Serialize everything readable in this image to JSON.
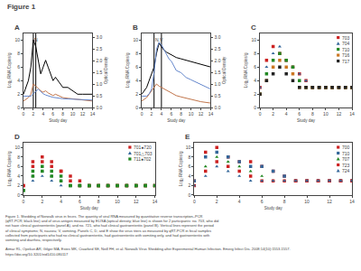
{
  "title": "Figure 1",
  "caption": "Figure 1. Shedding of Norwalk virus in feces. The quantity of viral RNA measured by quantitative reverse transcription–PCR\n(qRT-PCR; black line) and of virus antigen measured by ELISA (optical density; blue line) is shown for 2 participants: no. 703, who did\nnot have clinical gastroenteritis (panel A), and no. 721, who had clinical gastroenteritis (panel B). Vertical lines represent the period\nof clinical symptoms; N, nausea; V, vomiting. Panels C, D, and E show the virus titers as measured by qRT-PCR in fecal samples\ncollected from participants who had no clinical gastroenteritis, had gastroenteritis with vomiting only, and had gastroenteritis with\nvomiting and diarrhea, respectively.",
  "citation": "Atmar RL, Opekun AR, Gilger MA, Estes MK, Crawford SE, Neill FH, et al. Norwalk Virus Shedding after Experimental Human Infection. Emerg Infect Dis. 2008;14(10):1553-1557.\nhttps://doi.org/10.3201/eid1410.080117",
  "chart_data": [
    {
      "type": "line",
      "title": "A",
      "xlabel": "Study day",
      "ylabel": "Log₂ RNA Copies/g",
      "y2label": "Optical Density",
      "x": [
        0,
        0.5,
        1,
        1.5,
        2,
        2.5,
        3,
        3.5,
        4,
        4.5,
        5,
        5.5,
        6,
        6.5,
        7,
        7.5,
        8,
        9,
        10,
        11,
        12,
        13,
        14
      ],
      "series": [
        {
          "color": "black",
          "values": [
            2,
            3,
            4,
            6,
            10,
            9,
            7,
            5,
            6,
            7,
            6,
            5,
            4,
            4.5,
            4,
            3.5,
            3,
            3,
            2.5,
            2,
            2,
            2,
            2
          ]
        },
        {
          "color": "#c0744a",
          "values": [
            1,
            1.2,
            1.5,
            2,
            3.5,
            3.2,
            2.8,
            2.5,
            2.3,
            2.5,
            2.2,
            2.0,
            1.8,
            2.0,
            1.8,
            1.6,
            1.5,
            1.4,
            1.3,
            1.2,
            1.1,
            1.0,
            1.0
          ]
        },
        {
          "color": "#6688cc",
          "axis": "y2",
          "values": [
            0.5,
            0.5,
            0.5,
            0.5,
            0.6,
            0.7,
            0.8,
            0.7,
            0.6,
            0.55,
            0.5,
            0.48,
            0.45,
            0.43,
            0.42,
            0.4,
            0.39,
            0.38,
            0.37,
            0.36,
            0.35,
            0.34,
            0.33
          ]
        }
      ],
      "xlim": [
        0,
        14
      ],
      "xticks": [
        0,
        2,
        4,
        6,
        8,
        10,
        12,
        14
      ],
      "ylim": [
        0,
        11
      ],
      "yticks": [
        0,
        2,
        4,
        6,
        8,
        10
      ],
      "y2lim": [
        0,
        3.2
      ],
      "y2ticks": [
        {
          "value": 0,
          "label": "0.0"
        },
        0.5,
        {
          "value": 1,
          "label": "1.0"
        },
        1.5,
        {
          "value": 2,
          "label": "2.0"
        },
        2.5,
        {
          "value": 3,
          "label": "3.0"
        }
      ],
      "vlines": [
        2,
        2.5
      ],
      "annotations": [
        {
          "text": "N",
          "x": 2.05,
          "y": 9.5
        }
      ],
      "grid": false
    },
    {
      "type": "line",
      "title": "B",
      "xlabel": "Study day",
      "ylabel": "Log₂ RNA Copies/g",
      "y2label": "Optical Density",
      "x": [
        0,
        0.5,
        1,
        1.5,
        2,
        2.5,
        3,
        3.5,
        4,
        4.5,
        5,
        5.5,
        6,
        6.5,
        7,
        8,
        9,
        10,
        11,
        12,
        13,
        14
      ],
      "series": [
        {
          "color": "black",
          "values": [
            2,
            2.5,
            3,
            4,
            5,
            6,
            8,
            9.5,
            9,
            8.5,
            8.2,
            8,
            7.8,
            7.6,
            7.4,
            7.2,
            7,
            6.8,
            6.6,
            6.4,
            6.2,
            6
          ]
        },
        {
          "color": "#c0744a",
          "values": [
            1,
            1.2,
            1.5,
            2,
            2.5,
            3,
            3.5,
            3.2,
            3,
            2.8,
            2.6,
            2.4,
            2.2,
            2,
            1.8,
            1.6,
            1.4,
            1.2,
            1,
            0.9,
            0.8,
            0.7
          ]
        },
        {
          "color": "#6688cc",
          "axis": "y2",
          "values": [
            0.5,
            0.5,
            0.5,
            0.6,
            0.8,
            1.5,
            2.5,
            2.8,
            2.7,
            2.5,
            2.3,
            2.1,
            2.0,
            1.8,
            1.6,
            1.5,
            1.3,
            1.2,
            1.1,
            1.0,
            0.9,
            0.8
          ]
        }
      ],
      "xlim": [
        0,
        14
      ],
      "xticks": [
        0,
        2,
        4,
        6,
        8,
        10,
        12,
        14
      ],
      "ylim": [
        0,
        11
      ],
      "yticks": [
        0,
        2,
        4,
        6,
        8,
        10
      ],
      "y2lim": [
        0,
        3.2
      ],
      "y2ticks": [
        {
          "value": 0,
          "label": "0.0"
        },
        0.5,
        {
          "value": 1,
          "label": "1.0"
        },
        1.5,
        {
          "value": 2,
          "label": "2.0"
        },
        2.5,
        {
          "value": 3,
          "label": "3.0"
        }
      ],
      "vlines": [
        2.5,
        4
      ],
      "annotations": [
        {
          "text": "N,V",
          "x": 2.6,
          "y": 9.5
        }
      ],
      "grid": false
    },
    {
      "type": "scatter",
      "title": "C",
      "xlabel": "Study day",
      "ylabel": "Log₂ RNA Copies/g",
      "x": [
        0,
        1,
        2,
        3,
        4,
        5,
        6,
        7,
        8,
        9,
        10,
        11,
        12,
        13,
        14
      ],
      "series": [
        {
          "name": "703",
          "color": "#cc2222",
          "marker": "square",
          "values": [
            3,
            7,
            9,
            8,
            7,
            6,
            5,
            4,
            3,
            3,
            3,
            3,
            3,
            3,
            3
          ]
        },
        {
          "name": "704",
          "color": "#336699",
          "marker": "triangle",
          "values": [
            3,
            6,
            8,
            9,
            7,
            6,
            5,
            4,
            3,
            3,
            3,
            3,
            3,
            3,
            3
          ]
        },
        {
          "name": "710",
          "color": "#228822",
          "marker": "square",
          "values": [
            2,
            5,
            7,
            8,
            7,
            6,
            4,
            3,
            3,
            3,
            3,
            3,
            3,
            3,
            3
          ]
        },
        {
          "name": "716",
          "color": "#cc7722",
          "marker": "square",
          "values": [
            2,
            4,
            6,
            7,
            6,
            5,
            3,
            3,
            3,
            3,
            3,
            3,
            3,
            3,
            3
          ]
        },
        {
          "name": "717",
          "color": "#222222",
          "marker": "square",
          "values": [
            2,
            4,
            5,
            6,
            5,
            4,
            3,
            3,
            3,
            3,
            3,
            3,
            3,
            3,
            3
          ]
        }
      ],
      "xlim": [
        0,
        14
      ],
      "xticks": [
        0,
        2,
        4,
        6,
        8,
        10,
        12,
        14
      ],
      "ylim": [
        0,
        11
      ],
      "yticks": [
        0,
        2,
        4,
        6,
        8,
        10
      ],
      "legend": "upper right",
      "grid": false
    },
    {
      "type": "scatter",
      "title": "D",
      "xlabel": "Study day",
      "ylabel": "Log₂ RNA Copies/g",
      "x": [
        0,
        1,
        2,
        3,
        4,
        5,
        6,
        7,
        8,
        9,
        10,
        11,
        12,
        13,
        14
      ],
      "series": [
        {
          "name": "701●720",
          "color": "#cc2222",
          "marker": "square",
          "values": [
            2,
            7,
            8,
            7,
            5,
            4,
            3,
            2,
            2,
            2,
            2,
            2,
            2,
            2,
            2
          ]
        },
        {
          "color": "#cc2222",
          "marker": "square",
          "values": [
            2,
            6,
            7,
            6,
            5,
            3,
            2,
            2,
            2,
            2,
            2,
            2,
            2,
            2,
            2
          ]
        },
        {
          "name": "701△703",
          "color": "#336699",
          "marker": "triangle",
          "values": [
            1,
            4,
            5,
            4,
            3,
            2,
            2,
            2,
            2,
            2,
            2,
            2,
            2,
            2,
            2
          ]
        },
        {
          "color": "#336699",
          "marker": "triangle",
          "values": [
            1,
            3,
            4,
            3,
            2,
            2,
            2,
            2,
            2,
            2,
            2,
            2,
            2,
            2,
            2
          ]
        },
        {
          "name": "711●702",
          "color": "#228822",
          "marker": "square",
          "values": [
            1,
            5,
            6,
            5,
            4,
            2,
            2,
            2,
            2,
            2,
            2,
            2,
            2,
            2,
            2
          ]
        },
        {
          "color": "#228822",
          "marker": "square",
          "values": [
            1,
            4,
            5,
            4,
            3,
            2,
            2,
            2,
            2,
            2,
            2,
            2,
            2,
            2,
            2
          ]
        }
      ],
      "xlim": [
        0,
        14
      ],
      "xticks": [
        0,
        2,
        4,
        6,
        8,
        10,
        12,
        14
      ],
      "ylim": [
        0,
        11
      ],
      "yticks": [
        0,
        2,
        4,
        6,
        8,
        10
      ],
      "legend": "upper right",
      "grid": false
    },
    {
      "type": "scatter",
      "title": "E",
      "xlabel": "Study day",
      "ylabel": "Log₂ RNA Copies/g",
      "x": [
        0,
        1,
        2,
        3,
        4,
        5,
        6,
        7,
        8,
        9,
        10,
        11,
        12,
        13,
        14
      ],
      "series": [
        {
          "name": "700",
          "color": "#cc2222",
          "marker": "square",
          "values": [
            3,
            9,
            10,
            8,
            7,
            7,
            6,
            5,
            4,
            3,
            3,
            3,
            3,
            3,
            3
          ]
        },
        {
          "name": "710",
          "color": "#336699",
          "marker": "square",
          "values": [
            3,
            8,
            9,
            8,
            7,
            6,
            6,
            5,
            4,
            3,
            3,
            3,
            3,
            3,
            3
          ]
        },
        {
          "name": "707",
          "color": "#228822",
          "marker": "triangle",
          "values": [
            2,
            6,
            8,
            7,
            6,
            5,
            4,
            3,
            3,
            3,
            3,
            3,
            3,
            3,
            3
          ]
        },
        {
          "name": "723",
          "color": "#cc2222",
          "marker": "square",
          "values": [
            2,
            5,
            7,
            6,
            5,
            4,
            3,
            3,
            3,
            3,
            3,
            3,
            3,
            3,
            3
          ]
        },
        {
          "name": "724",
          "color": "#336699",
          "marker": "triangle",
          "values": [
            2,
            4,
            6,
            5,
            4,
            3,
            3,
            3,
            3,
            3,
            3,
            3,
            3,
            3,
            3
          ]
        }
      ],
      "xlim": [
        0,
        14
      ],
      "xticks": [
        0,
        2,
        4,
        6,
        8,
        10,
        12,
        14
      ],
      "ylim": [
        0,
        11
      ],
      "yticks": [
        0,
        2,
        4,
        6,
        8,
        10
      ],
      "legend": "upper right",
      "grid": false
    }
  ]
}
